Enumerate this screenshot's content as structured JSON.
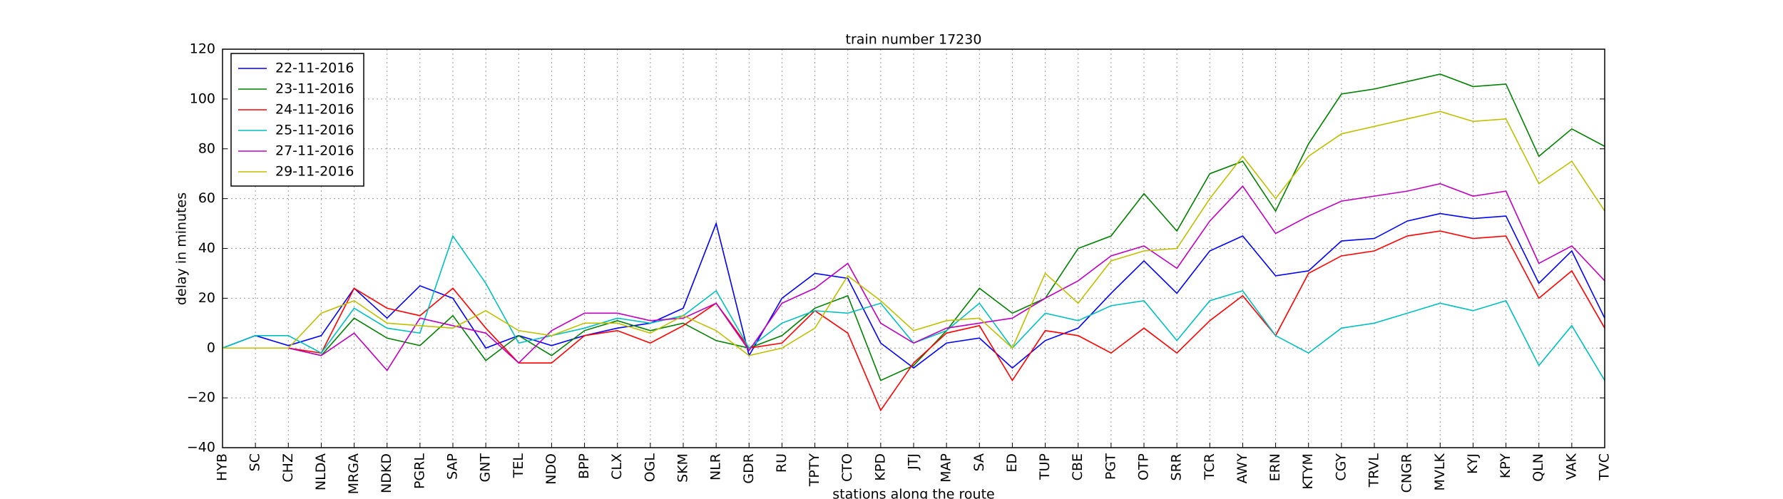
{
  "chart_data": {
    "type": "line",
    "title": "train number 17230",
    "x_label": "stations along the route",
    "y_label": "delay in minutes",
    "categories": [
      "HYB",
      "SC",
      "CHZ",
      "NLDA",
      "MRGA",
      "NDKD",
      "PGRL",
      "SAP",
      "GNT",
      "TEL",
      "NDO",
      "BPP",
      "CLX",
      "OGL",
      "SKM",
      "NLR",
      "GDR",
      "RU",
      "TPTY",
      "CTO",
      "KPD",
      "JTJ",
      "MAP",
      "SA",
      "ED",
      "TUP",
      "CBE",
      "PGT",
      "OTP",
      "SRR",
      "TCR",
      "AWY",
      "ERN",
      "KTYM",
      "CGY",
      "TRVL",
      "CNGR",
      "MVLK",
      "KYJ",
      "KPY",
      "QLN",
      "VAK",
      "TVC"
    ],
    "series": [
      {
        "name": "22-11-2016",
        "color": "#0000ff",
        "values": [
          0,
          5,
          1,
          5,
          24,
          12,
          25,
          20,
          0,
          5,
          1,
          5,
          8,
          10,
          16,
          50,
          -3,
          20,
          30,
          28,
          2,
          -8,
          2,
          4,
          -8,
          3,
          8,
          22,
          35,
          22,
          39,
          45,
          29,
          31,
          43,
          44,
          51,
          54,
          52,
          53,
          26,
          39,
          12
        ]
      },
      {
        "name": "23-11-2016",
        "color": "#008000",
        "values": [
          0,
          0,
          0,
          -3,
          12,
          4,
          1,
          13,
          -5,
          5,
          -3,
          7,
          11,
          7,
          10,
          3,
          0,
          5,
          16,
          21,
          -13,
          -7,
          7,
          24,
          14,
          20,
          40,
          45,
          62,
          47,
          70,
          75,
          55,
          82,
          102,
          104,
          107,
          110,
          105,
          106,
          77,
          88,
          81
        ]
      },
      {
        "name": "24-11-2016",
        "color": "#ff0000",
        "values": [
          0,
          0,
          0,
          -2,
          24,
          16,
          13,
          24,
          8,
          -6,
          -6,
          5,
          7,
          2,
          9,
          18,
          0,
          2,
          15,
          6,
          -25,
          -6,
          6,
          9,
          -13,
          7,
          5,
          -2,
          8,
          -2,
          11,
          21,
          5,
          30,
          37,
          39,
          45,
          47,
          44,
          45,
          20,
          31,
          8
        ]
      },
      {
        "name": "25-11-2016",
        "color": "#00bfbf",
        "values": [
          0,
          5,
          5,
          -2,
          16,
          8,
          6,
          45,
          26,
          2,
          5,
          8,
          12,
          10,
          13,
          23,
          0,
          10,
          15,
          14,
          18,
          2,
          7,
          18,
          0,
          14,
          11,
          17,
          19,
          3,
          19,
          23,
          5,
          -2,
          8,
          10,
          14,
          18,
          15,
          19,
          -7,
          9,
          -13
        ]
      },
      {
        "name": "27-11-2016",
        "color": "#bf00bf",
        "values": [
          0,
          0,
          0,
          -3,
          6,
          -9,
          12,
          9,
          6,
          -6,
          7,
          14,
          14,
          11,
          12,
          18,
          -1,
          18,
          24,
          34,
          10,
          2,
          8,
          10,
          12,
          20,
          27,
          37,
          41,
          32,
          51,
          65,
          46,
          53,
          59,
          61,
          63,
          66,
          61,
          63,
          34,
          41,
          27
        ]
      },
      {
        "name": "29-11-2016",
        "color": "#bfbf00",
        "values": [
          0,
          0,
          0,
          14,
          19,
          10,
          9,
          8,
          15,
          7,
          5,
          10,
          10,
          6,
          13,
          7,
          -3,
          0,
          8,
          29,
          19,
          7,
          11,
          12,
          0,
          30,
          18,
          35,
          39,
          40,
          60,
          77,
          60,
          77,
          86,
          89,
          92,
          95,
          91,
          92,
          66,
          75,
          55
        ]
      }
    ],
    "ylim": [
      -40,
      120
    ],
    "yticks": [
      {
        "value": -40,
        "label": "−40"
      },
      {
        "value": -20,
        "label": "−20"
      },
      0,
      20,
      40,
      60,
      80,
      100,
      120
    ],
    "grid": true,
    "legend": "upper left"
  }
}
